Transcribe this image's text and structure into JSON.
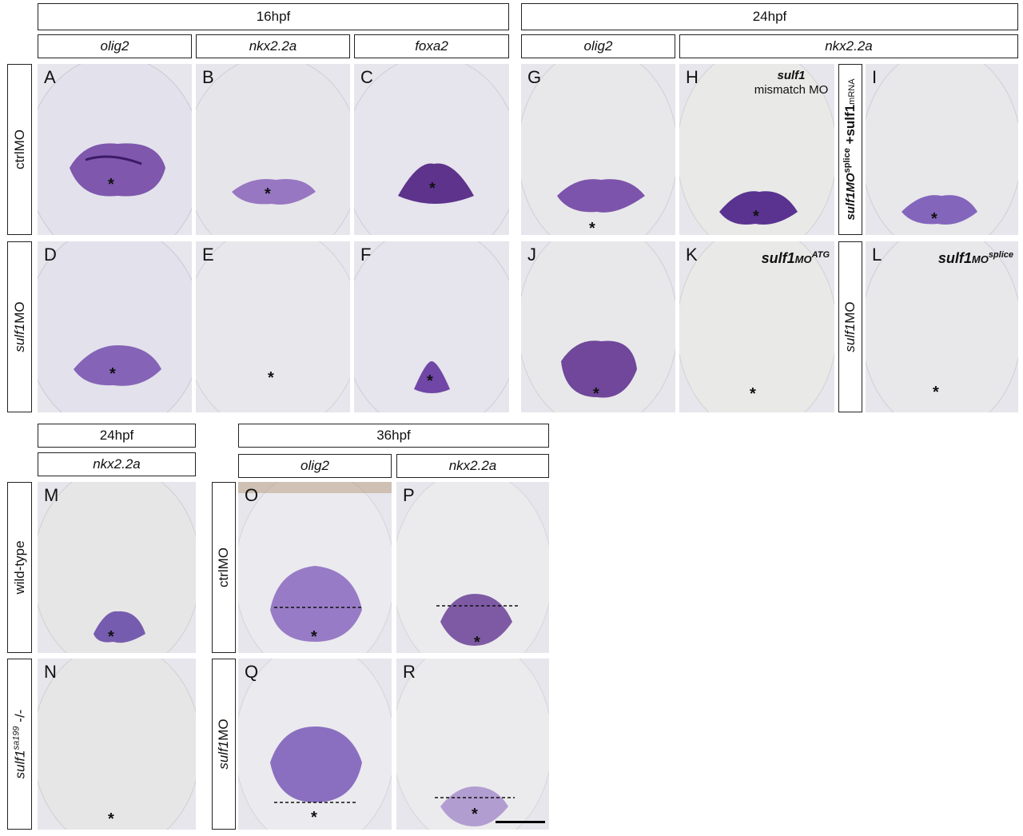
{
  "headers": {
    "h16": "16hpf",
    "h24": "24hpf",
    "h24b": "24hpf",
    "h36": "36hpf"
  },
  "genes": {
    "a": "olig2",
    "b": "nkx2.2a",
    "c": "foxa2",
    "g": "olig2",
    "h": "nkx2.2a",
    "m": "nkx2.2a",
    "o": "olig2",
    "p": "nkx2.2a"
  },
  "rows": {
    "ctrl1": "ctrlMO",
    "sulf1_italic": "sulf1",
    "sulf1_rest": "MO",
    "wt": "wild-type",
    "sa_a": "sulf1",
    "sa_sup": "sa199",
    "sa_b": " -/-",
    "ctrl2": "ctrlMO",
    "sulf1_2_italic": "sulf1",
    "sulf1_2_rest": "MO",
    "rescue_a": "sulf1MO",
    "rescue_sup": "splice",
    "rescue_b": " +sulf1",
    "rescue_c": "mRNA",
    "sulf1_3_italic": "sulf1",
    "sulf1_3_rest": "MO"
  },
  "panels": {
    "A": "A",
    "B": "B",
    "C": "C",
    "D": "D",
    "E": "E",
    "F": "F",
    "G": "G",
    "H": "H",
    "I": "I",
    "J": "J",
    "K": "K",
    "L": "L",
    "M": "M",
    "N": "N",
    "O": "O",
    "P": "P",
    "Q": "Q",
    "R": "R"
  },
  "annotations": {
    "h_line1": "sulf1",
    "h_line2": "mismatch MO",
    "k_main": "sulf1",
    "k_sub": "MO",
    "k_sup": "ATG",
    "l_main": "sulf1",
    "l_sub": "MO",
    "l_sup": "splice"
  },
  "star": "*",
  "colors": {
    "background": "#e6e6ec",
    "stain": "#5a2a8c",
    "stain_light": "#9a7cc4"
  }
}
